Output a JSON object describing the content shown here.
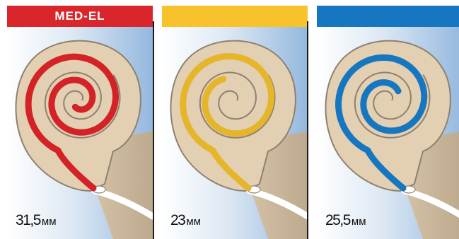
{
  "panels": [
    {
      "brand": "MED-EL",
      "header_color": "#d9262d",
      "electrode_color": "#d42327",
      "length": "31,5",
      "unit": "мм"
    },
    {
      "brand": "",
      "header_color": "#f7c22b",
      "electrode_color": "#e5b52a",
      "length": "23",
      "unit": "мм"
    },
    {
      "brand": "",
      "header_color": "#1677c0",
      "electrode_color": "#1677c0",
      "length": "25,5",
      "unit": "мм"
    }
  ],
  "colors": {
    "cochlea_fill": "#e3cfb2",
    "cochlea_outline": "#8e8170",
    "background_light": "#ffffff",
    "background_blue": "#94b8de",
    "nerve_tan": "#bda98e"
  }
}
